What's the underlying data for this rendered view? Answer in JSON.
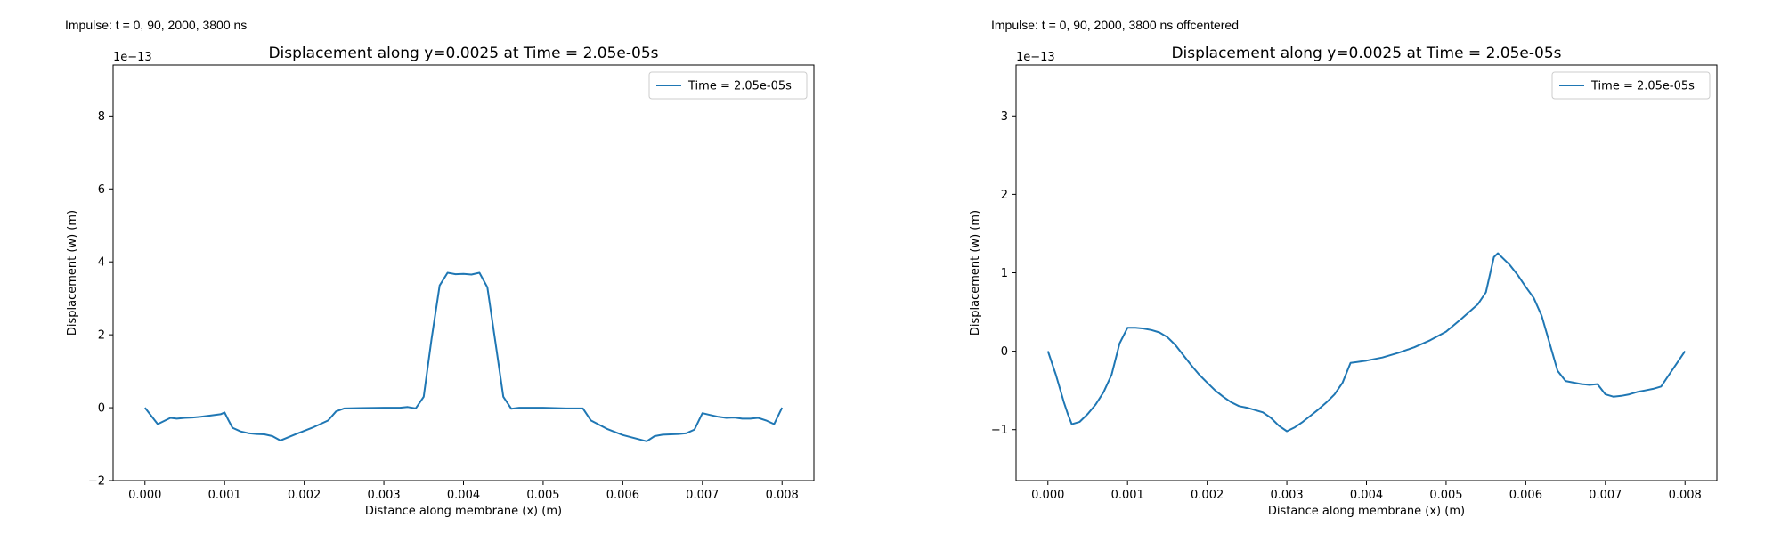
{
  "headers": {
    "left": "Impulse: t = 0, 90, 2000, 3800 ns",
    "right": "Impulse: t = 0, 90, 2000, 3800 ns offcentered"
  },
  "colors": {
    "series": "#1f77b4",
    "axes": "#000000",
    "background": "#ffffff"
  },
  "chart_data": [
    {
      "type": "line",
      "title": "Displacement along y=0.0025 at Time = 2.05e-05s",
      "xlabel": "Distance along membrane (x) (m)",
      "ylabel": "Displacement (w) (m)",
      "y_offset_label": "1e−13",
      "xlim": [
        -0.0004,
        0.0084
      ],
      "ylim": [
        -2,
        9.4
      ],
      "xticks": [
        0.0,
        0.001,
        0.002,
        0.003,
        0.004,
        0.005,
        0.006,
        0.007,
        0.008
      ],
      "xtick_labels": [
        "0.000",
        "0.001",
        "0.002",
        "0.003",
        "0.004",
        "0.005",
        "0.006",
        "0.007",
        "0.008"
      ],
      "yticks": [
        -2,
        0,
        2,
        4,
        6,
        8
      ],
      "ytick_labels": [
        "−2",
        "0",
        "2",
        "4",
        "6",
        "8"
      ],
      "grid": false,
      "legend_position": "top-right",
      "series": [
        {
          "name": "Time = 2.05e-05s",
          "x": [
            0.0,
            0.00016,
            0.00032,
            0.0004,
            0.0005,
            0.0006,
            0.0007,
            0.0008,
            0.00095,
            0.001,
            0.00105,
            0.0011,
            0.0012,
            0.0013,
            0.0014,
            0.0015,
            0.0016,
            0.0017,
            0.0019,
            0.0021,
            0.0023,
            0.0024,
            0.0025,
            0.0027,
            0.003,
            0.0032,
            0.0033,
            0.0034,
            0.0035,
            0.0036,
            0.0037,
            0.0038,
            0.0039,
            0.004,
            0.0041,
            0.0042,
            0.0043,
            0.0044,
            0.0045,
            0.0046,
            0.0047,
            0.005,
            0.0053,
            0.0055,
            0.0056,
            0.0058,
            0.006,
            0.0063,
            0.0064,
            0.0065,
            0.0067,
            0.0068,
            0.0069,
            0.007,
            0.0071,
            0.0072,
            0.0073,
            0.0074,
            0.0075,
            0.0076,
            0.0077,
            0.0078,
            0.0079,
            0.008
          ],
          "y": [
            0.0,
            -0.45,
            -0.28,
            -0.3,
            -0.28,
            -0.27,
            -0.25,
            -0.22,
            -0.18,
            -0.13,
            -0.35,
            -0.55,
            -0.65,
            -0.7,
            -0.72,
            -0.73,
            -0.78,
            -0.9,
            -0.72,
            -0.55,
            -0.35,
            -0.1,
            -0.02,
            -0.01,
            0.0,
            0.0,
            0.02,
            -0.02,
            0.3,
            1.9,
            3.35,
            3.7,
            3.66,
            3.67,
            3.65,
            3.7,
            3.3,
            1.8,
            0.3,
            -0.03,
            0.0,
            0.0,
            -0.02,
            -0.02,
            -0.35,
            -0.58,
            -0.75,
            -0.92,
            -0.78,
            -0.74,
            -0.72,
            -0.7,
            -0.6,
            -0.15,
            -0.2,
            -0.25,
            -0.28,
            -0.27,
            -0.3,
            -0.3,
            -0.28,
            -0.35,
            -0.45,
            0.0
          ]
        }
      ]
    },
    {
      "type": "line",
      "title": "Displacement along y=0.0025 at Time = 2.05e-05s",
      "xlabel": "Distance along membrane (x) (m)",
      "ylabel": "Displacement (w) (m)",
      "y_offset_label": "1e−13",
      "xlim": [
        -0.0004,
        0.0084
      ],
      "ylim": [
        -1.65,
        3.65
      ],
      "xticks": [
        0.0,
        0.001,
        0.002,
        0.003,
        0.004,
        0.005,
        0.006,
        0.007,
        0.008
      ],
      "xtick_labels": [
        "0.000",
        "0.001",
        "0.002",
        "0.003",
        "0.004",
        "0.005",
        "0.006",
        "0.007",
        "0.008"
      ],
      "yticks": [
        -1,
        0,
        1,
        2,
        3
      ],
      "ytick_labels": [
        "−1",
        "0",
        "1",
        "2",
        "3"
      ],
      "grid": false,
      "legend_position": "top-right",
      "series": [
        {
          "name": "Time = 2.05e-05s",
          "x": [
            0.0,
            0.0001,
            0.0002,
            0.00025,
            0.0003,
            0.0004,
            0.0005,
            0.0006,
            0.0007,
            0.0008,
            0.0009,
            0.001,
            0.00105,
            0.0011,
            0.0012,
            0.0013,
            0.0014,
            0.0015,
            0.0016,
            0.0017,
            0.0018,
            0.0019,
            0.002,
            0.0021,
            0.0022,
            0.0023,
            0.0024,
            0.0025,
            0.0026,
            0.0027,
            0.0028,
            0.0029,
            0.003,
            0.0031,
            0.0032,
            0.0033,
            0.0034,
            0.0035,
            0.0036,
            0.0037,
            0.0038,
            0.004,
            0.0042,
            0.0044,
            0.0046,
            0.0048,
            0.005,
            0.0052,
            0.0054,
            0.0055,
            0.0056,
            0.00565,
            0.0057,
            0.0058,
            0.0059,
            0.006,
            0.0061,
            0.0062,
            0.0063,
            0.0064,
            0.0065,
            0.0066,
            0.0067,
            0.0068,
            0.0069,
            0.007,
            0.0071,
            0.0072,
            0.0073,
            0.0074,
            0.0075,
            0.0076,
            0.0077,
            0.0078,
            0.0079,
            0.008
          ],
          "y": [
            0.0,
            -0.3,
            -0.65,
            -0.8,
            -0.93,
            -0.9,
            -0.8,
            -0.68,
            -0.52,
            -0.3,
            0.1,
            0.3,
            0.3,
            0.3,
            0.29,
            0.27,
            0.24,
            0.18,
            0.08,
            -0.05,
            -0.18,
            -0.3,
            -0.4,
            -0.5,
            -0.58,
            -0.65,
            -0.7,
            -0.72,
            -0.75,
            -0.78,
            -0.85,
            -0.95,
            -1.02,
            -0.97,
            -0.9,
            -0.82,
            -0.74,
            -0.65,
            -0.55,
            -0.4,
            -0.15,
            -0.12,
            -0.08,
            -0.02,
            0.05,
            0.14,
            0.25,
            0.42,
            0.6,
            0.75,
            1.2,
            1.25,
            1.2,
            1.1,
            0.97,
            0.82,
            0.68,
            0.45,
            0.1,
            -0.25,
            -0.38,
            -0.4,
            -0.42,
            -0.43,
            -0.42,
            -0.55,
            -0.58,
            -0.57,
            -0.55,
            -0.52,
            -0.5,
            -0.48,
            -0.45,
            -0.3,
            -0.15,
            0.0
          ]
        }
      ]
    }
  ]
}
